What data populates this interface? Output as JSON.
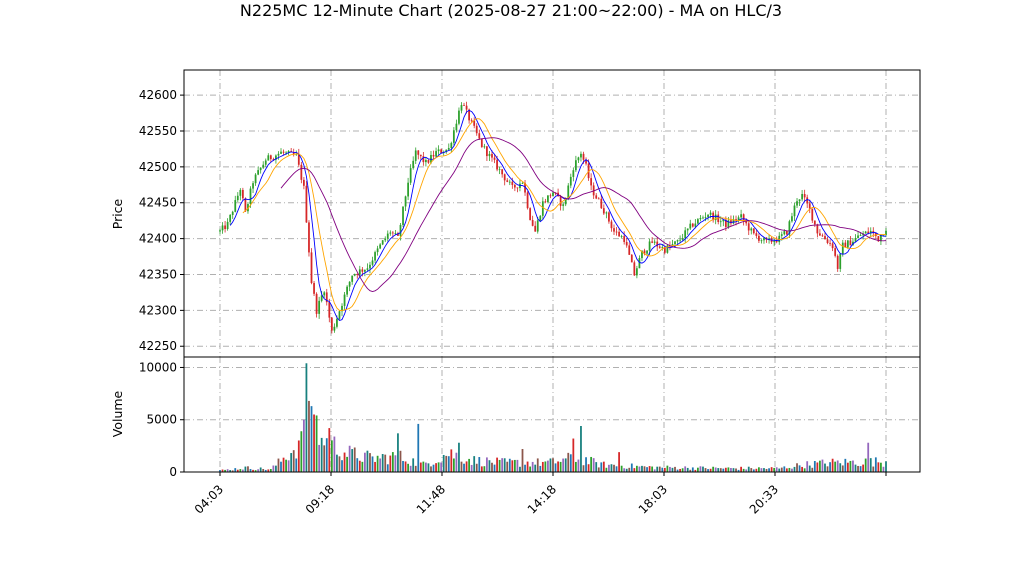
{
  "chart_data": [
    {
      "type": "candlestick",
      "title": "N225MC 12-Minute Chart (2025-08-27 21:00~22:00) - MA on HLC/3",
      "ylabel": "Price",
      "ylim": [
        42235,
        42635
      ],
      "yticks": [
        "42250",
        "42300",
        "42350",
        "42400",
        "42450",
        "42500",
        "42550",
        "42600"
      ],
      "xticks": [
        "04:03",
        "09:18",
        "11:48",
        "14:18",
        "18:03",
        "20:33"
      ],
      "grid": true,
      "colors": {
        "up": "#2ca02c",
        "down": "#d62728",
        "ma_fast": "#0000ff",
        "ma_mid": "#ffa500",
        "ma_slow": "#800080"
      },
      "price_waypoints": [
        {
          "t": 0,
          "p": 42410
        },
        {
          "t": 3,
          "p": 42420
        },
        {
          "t": 8,
          "p": 42470
        },
        {
          "t": 10,
          "p": 42435
        },
        {
          "t": 13,
          "p": 42480
        },
        {
          "t": 18,
          "p": 42510
        },
        {
          "t": 24,
          "p": 42520
        },
        {
          "t": 30,
          "p": 42515
        },
        {
          "t": 33,
          "p": 42470
        },
        {
          "t": 36,
          "p": 42340
        },
        {
          "t": 38,
          "p": 42300
        },
        {
          "t": 41,
          "p": 42330
        },
        {
          "t": 44,
          "p": 42270
        },
        {
          "t": 47,
          "p": 42300
        },
        {
          "t": 52,
          "p": 42350
        },
        {
          "t": 58,
          "p": 42360
        },
        {
          "t": 63,
          "p": 42390
        },
        {
          "t": 67,
          "p": 42410
        },
        {
          "t": 70,
          "p": 42400
        },
        {
          "t": 74,
          "p": 42480
        },
        {
          "t": 77,
          "p": 42520
        },
        {
          "t": 81,
          "p": 42505
        },
        {
          "t": 85,
          "p": 42520
        },
        {
          "t": 90,
          "p": 42525
        },
        {
          "t": 95,
          "p": 42590
        },
        {
          "t": 99,
          "p": 42560
        },
        {
          "t": 103,
          "p": 42530
        },
        {
          "t": 107,
          "p": 42510
        },
        {
          "t": 111,
          "p": 42490
        },
        {
          "t": 115,
          "p": 42470
        },
        {
          "t": 119,
          "p": 42480
        },
        {
          "t": 122,
          "p": 42430
        },
        {
          "t": 124,
          "p": 42410
        },
        {
          "t": 127,
          "p": 42450
        },
        {
          "t": 131,
          "p": 42465
        },
        {
          "t": 135,
          "p": 42445
        },
        {
          "t": 139,
          "p": 42500
        },
        {
          "t": 142,
          "p": 42520
        },
        {
          "t": 144,
          "p": 42500
        },
        {
          "t": 146,
          "p": 42470
        },
        {
          "t": 151,
          "p": 42440
        },
        {
          "t": 155,
          "p": 42410
        },
        {
          "t": 159,
          "p": 42400
        },
        {
          "t": 163,
          "p": 42350
        },
        {
          "t": 166,
          "p": 42380
        },
        {
          "t": 170,
          "p": 42395
        },
        {
          "t": 175,
          "p": 42385
        },
        {
          "t": 180,
          "p": 42395
        },
        {
          "t": 186,
          "p": 42420
        },
        {
          "t": 192,
          "p": 42435
        },
        {
          "t": 199,
          "p": 42420
        },
        {
          "t": 205,
          "p": 42430
        },
        {
          "t": 210,
          "p": 42405
        },
        {
          "t": 215,
          "p": 42395
        },
        {
          "t": 220,
          "p": 42400
        },
        {
          "t": 223,
          "p": 42410
        },
        {
          "t": 227,
          "p": 42455
        },
        {
          "t": 229,
          "p": 42460
        },
        {
          "t": 232,
          "p": 42440
        },
        {
          "t": 235,
          "p": 42410
        },
        {
          "t": 238,
          "p": 42400
        },
        {
          "t": 241,
          "p": 42390
        },
        {
          "t": 243,
          "p": 42360
        },
        {
          "t": 245,
          "p": 42390
        },
        {
          "t": 248,
          "p": 42395
        },
        {
          "t": 252,
          "p": 42405
        },
        {
          "t": 256,
          "p": 42410
        },
        {
          "t": 259,
          "p": 42400
        },
        {
          "t": 262,
          "p": 42415
        }
      ],
      "volume_waypoints": [
        {
          "t": 0,
          "v": 150
        },
        {
          "t": 10,
          "v": 400
        },
        {
          "t": 20,
          "v": 250
        },
        {
          "t": 33,
          "v": 3000
        },
        {
          "t": 35,
          "v": 7000
        },
        {
          "t": 37,
          "v": 5000
        },
        {
          "t": 40,
          "v": 3000
        },
        {
          "t": 45,
          "v": 2500
        },
        {
          "t": 50,
          "v": 1800
        },
        {
          "t": 60,
          "v": 1300
        },
        {
          "t": 70,
          "v": 1500
        },
        {
          "t": 80,
          "v": 700
        },
        {
          "t": 90,
          "v": 1800
        },
        {
          "t": 100,
          "v": 1100
        },
        {
          "t": 110,
          "v": 900
        },
        {
          "t": 130,
          "v": 900
        },
        {
          "t": 140,
          "v": 1400
        },
        {
          "t": 150,
          "v": 700
        },
        {
          "t": 170,
          "v": 450
        },
        {
          "t": 200,
          "v": 350
        },
        {
          "t": 220,
          "v": 350
        },
        {
          "t": 230,
          "v": 700
        },
        {
          "t": 240,
          "v": 900
        },
        {
          "t": 262,
          "v": 1000
        }
      ],
      "volume_spikes": [
        {
          "t": 33,
          "v": 5000
        },
        {
          "t": 34,
          "v": 10400
        },
        {
          "t": 35,
          "v": 6800
        },
        {
          "t": 36,
          "v": 6300
        },
        {
          "t": 37,
          "v": 5500
        },
        {
          "t": 43,
          "v": 4200
        },
        {
          "t": 70,
          "v": 3700
        },
        {
          "t": 78,
          "v": 4600
        },
        {
          "t": 94,
          "v": 2800
        },
        {
          "t": 119,
          "v": 2200
        },
        {
          "t": 139,
          "v": 3200
        },
        {
          "t": 142,
          "v": 4400
        },
        {
          "t": 157,
          "v": 1900
        },
        {
          "t": 255,
          "v": 2800
        }
      ],
      "ma_periods": [
        5,
        10,
        25
      ]
    },
    {
      "type": "bar",
      "ylabel": "Volume",
      "ylim": [
        0,
        11000
      ],
      "yticks": [
        "0",
        "5000",
        "10000"
      ],
      "grid": true
    }
  ]
}
